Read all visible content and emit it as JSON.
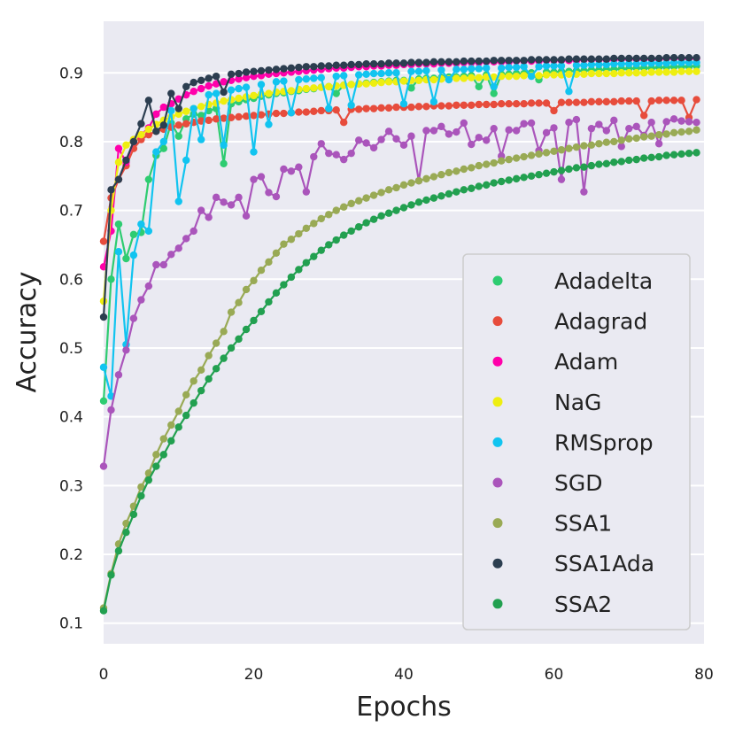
{
  "chart_data": {
    "type": "line",
    "title": "",
    "xlabel": "Epochs",
    "ylabel": "Accuracy",
    "xlim": [
      0,
      80
    ],
    "ylim": [
      0.07,
      0.975
    ],
    "xticks": [
      0,
      20,
      40,
      60,
      80
    ],
    "yticks": [
      0.1,
      0.2,
      0.3,
      0.4,
      0.5,
      0.6,
      0.7,
      0.8,
      0.9
    ],
    "xtick_labels": [
      "0",
      "20",
      "40",
      "60",
      "80"
    ],
    "ytick_labels": [
      "0.1",
      "0.2",
      "0.3",
      "0.4",
      "0.5",
      "0.6",
      "0.7",
      "0.8",
      "0.9"
    ],
    "grid": true,
    "legend_position": "center-right",
    "x": [
      0,
      1,
      2,
      3,
      4,
      5,
      6,
      7,
      8,
      9,
      10,
      11,
      12,
      13,
      14,
      15,
      16,
      17,
      18,
      19,
      20,
      21,
      22,
      23,
      24,
      25,
      26,
      27,
      28,
      29,
      30,
      31,
      32,
      33,
      34,
      35,
      36,
      37,
      38,
      39,
      40,
      41,
      42,
      43,
      44,
      45,
      46,
      47,
      48,
      49,
      50,
      51,
      52,
      53,
      54,
      55,
      56,
      57,
      58,
      59,
      60,
      61,
      62,
      63,
      64,
      65,
      66,
      67,
      68,
      69,
      70,
      71,
      72,
      73,
      74,
      75,
      76,
      77,
      78,
      79
    ],
    "series": [
      {
        "name": "Adadelta",
        "color": "#2ecc71",
        "values": [
          0.423,
          0.6,
          0.68,
          0.63,
          0.665,
          0.668,
          0.745,
          0.78,
          0.79,
          0.827,
          0.808,
          0.833,
          0.84,
          0.838,
          0.845,
          0.848,
          0.768,
          0.855,
          0.858,
          0.861,
          0.863,
          0.866,
          0.868,
          0.87,
          0.871,
          0.873,
          0.874,
          0.876,
          0.877,
          0.879,
          0.88,
          0.87,
          0.882,
          0.883,
          0.884,
          0.885,
          0.886,
          0.887,
          0.888,
          0.889,
          0.889,
          0.878,
          0.891,
          0.892,
          0.892,
          0.893,
          0.894,
          0.894,
          0.895,
          0.896,
          0.88,
          0.897,
          0.87,
          0.898,
          0.898,
          0.899,
          0.899,
          0.9,
          0.89,
          0.901,
          0.901,
          0.902,
          0.902,
          0.903,
          0.903,
          0.904,
          0.904,
          0.905,
          0.905,
          0.906,
          0.906,
          0.907,
          0.907,
          0.907,
          0.908,
          0.908,
          0.909,
          0.909,
          0.909,
          0.91
        ]
      },
      {
        "name": "Adagrad",
        "color": "#e74c3c",
        "values": [
          0.655,
          0.718,
          0.745,
          0.765,
          0.79,
          0.803,
          0.81,
          0.815,
          0.818,
          0.821,
          0.824,
          0.826,
          0.828,
          0.83,
          0.831,
          0.833,
          0.834,
          0.835,
          0.836,
          0.837,
          0.838,
          0.839,
          0.84,
          0.841,
          0.841,
          0.842,
          0.843,
          0.843,
          0.844,
          0.845,
          0.845,
          0.846,
          0.828,
          0.847,
          0.847,
          0.848,
          0.848,
          0.849,
          0.849,
          0.85,
          0.85,
          0.85,
          0.851,
          0.851,
          0.852,
          0.852,
          0.852,
          0.853,
          0.853,
          0.853,
          0.854,
          0.854,
          0.854,
          0.855,
          0.855,
          0.855,
          0.855,
          0.856,
          0.856,
          0.856,
          0.845,
          0.857,
          0.857,
          0.857,
          0.857,
          0.858,
          0.858,
          0.858,
          0.858,
          0.859,
          0.859,
          0.859,
          0.838,
          0.859,
          0.86,
          0.86,
          0.86,
          0.86,
          0.835,
          0.861
        ]
      },
      {
        "name": "Adam",
        "color": "#ff00aa",
        "values": [
          0.618,
          0.67,
          0.79,
          0.77,
          0.8,
          0.81,
          0.82,
          0.84,
          0.85,
          0.855,
          0.862,
          0.868,
          0.873,
          0.877,
          0.881,
          0.884,
          0.887,
          0.889,
          0.891,
          0.893,
          0.895,
          0.896,
          0.898,
          0.899,
          0.9,
          0.901,
          0.902,
          0.903,
          0.904,
          0.905,
          0.906,
          0.907,
          0.907,
          0.908,
          0.909,
          0.909,
          0.91,
          0.91,
          0.911,
          0.911,
          0.912,
          0.912,
          0.913,
          0.913,
          0.913,
          0.914,
          0.914,
          0.914,
          0.915,
          0.915,
          0.915,
          0.916,
          0.916,
          0.916,
          0.916,
          0.917,
          0.917,
          0.917,
          0.917,
          0.918,
          0.918,
          0.918,
          0.918,
          0.918,
          0.919,
          0.919,
          0.919,
          0.919,
          0.919,
          0.92,
          0.92,
          0.92,
          0.92,
          0.92,
          0.92,
          0.921,
          0.921,
          0.921,
          0.921,
          0.921
        ]
      },
      {
        "name": "NaG",
        "color": "#eeee11",
        "values": [
          0.568,
          0.7,
          0.77,
          0.795,
          0.803,
          0.81,
          0.818,
          0.825,
          0.831,
          0.836,
          0.84,
          0.844,
          0.848,
          0.851,
          0.854,
          0.856,
          0.859,
          0.861,
          0.863,
          0.865,
          0.867,
          0.869,
          0.87,
          0.872,
          0.873,
          0.874,
          0.876,
          0.877,
          0.878,
          0.879,
          0.88,
          0.881,
          0.882,
          0.883,
          0.884,
          0.884,
          0.885,
          0.886,
          0.887,
          0.887,
          0.888,
          0.889,
          0.889,
          0.89,
          0.89,
          0.891,
          0.891,
          0.892,
          0.892,
          0.893,
          0.893,
          0.894,
          0.894,
          0.895,
          0.895,
          0.895,
          0.896,
          0.896,
          0.896,
          0.897,
          0.897,
          0.897,
          0.898,
          0.898,
          0.898,
          0.899,
          0.899,
          0.899,
          0.899,
          0.9,
          0.9,
          0.9,
          0.9,
          0.901,
          0.901,
          0.901,
          0.901,
          0.902,
          0.902,
          0.902
        ]
      },
      {
        "name": "RMSprop",
        "color": "#11c4f0",
        "values": [
          0.472,
          0.43,
          0.64,
          0.505,
          0.635,
          0.68,
          0.67,
          0.785,
          0.8,
          0.845,
          0.713,
          0.773,
          0.848,
          0.803,
          0.868,
          0.87,
          0.795,
          0.875,
          0.877,
          0.879,
          0.785,
          0.883,
          0.825,
          0.887,
          0.888,
          0.842,
          0.89,
          0.891,
          0.892,
          0.893,
          0.848,
          0.895,
          0.896,
          0.853,
          0.897,
          0.898,
          0.899,
          0.899,
          0.9,
          0.9,
          0.855,
          0.902,
          0.902,
          0.903,
          0.858,
          0.904,
          0.89,
          0.905,
          0.905,
          0.906,
          0.906,
          0.907,
          0.88,
          0.907,
          0.908,
          0.908,
          0.909,
          0.895,
          0.909,
          0.91,
          0.91,
          0.91,
          0.873,
          0.911,
          0.911,
          0.912,
          0.912,
          0.912,
          0.913,
          0.913,
          0.913,
          0.913,
          0.914,
          0.914,
          0.914,
          0.914,
          0.915,
          0.915,
          0.915,
          0.915
        ]
      },
      {
        "name": "SGD",
        "color": "#aa55bb",
        "values": [
          0.328,
          0.41,
          0.461,
          0.497,
          0.543,
          0.57,
          0.59,
          0.621,
          0.621,
          0.636,
          0.645,
          0.659,
          0.67,
          0.7,
          0.69,
          0.719,
          0.712,
          0.708,
          0.719,
          0.692,
          0.745,
          0.749,
          0.726,
          0.72,
          0.76,
          0.757,
          0.763,
          0.727,
          0.778,
          0.797,
          0.783,
          0.781,
          0.774,
          0.783,
          0.802,
          0.798,
          0.791,
          0.803,
          0.815,
          0.804,
          0.795,
          0.808,
          0.743,
          0.816,
          0.816,
          0.822,
          0.811,
          0.814,
          0.827,
          0.796,
          0.806,
          0.802,
          0.819,
          0.779,
          0.817,
          0.816,
          0.826,
          0.827,
          0.787,
          0.813,
          0.82,
          0.745,
          0.828,
          0.832,
          0.727,
          0.819,
          0.825,
          0.816,
          0.831,
          0.793,
          0.819,
          0.822,
          0.809,
          0.828,
          0.797,
          0.829,
          0.833,
          0.83,
          0.829,
          0.828
        ]
      },
      {
        "name": "SSA1",
        "color": "#99aa55",
        "values": [
          0.122,
          0.172,
          0.215,
          0.245,
          0.27,
          0.298,
          0.318,
          0.345,
          0.368,
          0.388,
          0.408,
          0.432,
          0.452,
          0.468,
          0.489,
          0.507,
          0.524,
          0.552,
          0.566,
          0.585,
          0.598,
          0.613,
          0.625,
          0.638,
          0.651,
          0.658,
          0.666,
          0.674,
          0.681,
          0.688,
          0.694,
          0.7,
          0.705,
          0.71,
          0.714,
          0.718,
          0.722,
          0.726,
          0.73,
          0.733,
          0.737,
          0.74,
          0.743,
          0.746,
          0.749,
          0.752,
          0.755,
          0.757,
          0.76,
          0.762,
          0.765,
          0.767,
          0.769,
          0.772,
          0.774,
          0.776,
          0.778,
          0.78,
          0.782,
          0.784,
          0.786,
          0.788,
          0.79,
          0.792,
          0.794,
          0.795,
          0.797,
          0.799,
          0.8,
          0.802,
          0.804,
          0.805,
          0.807,
          0.808,
          0.81,
          0.811,
          0.813,
          0.814,
          0.815,
          0.817
        ]
      },
      {
        "name": "SSA1Ada",
        "color": "#2c3e50",
        "values": [
          0.545,
          0.73,
          0.745,
          0.773,
          0.8,
          0.826,
          0.86,
          0.815,
          0.824,
          0.87,
          0.848,
          0.88,
          0.886,
          0.889,
          0.892,
          0.895,
          0.872,
          0.898,
          0.899,
          0.901,
          0.902,
          0.903,
          0.904,
          0.905,
          0.906,
          0.907,
          0.908,
          0.909,
          0.909,
          0.91,
          0.91,
          0.911,
          0.911,
          0.912,
          0.912,
          0.913,
          0.913,
          0.913,
          0.914,
          0.914,
          0.914,
          0.915,
          0.915,
          0.915,
          0.916,
          0.916,
          0.916,
          0.916,
          0.917,
          0.917,
          0.917,
          0.917,
          0.918,
          0.918,
          0.918,
          0.918,
          0.918,
          0.919,
          0.919,
          0.919,
          0.919,
          0.919,
          0.92,
          0.92,
          0.92,
          0.92,
          0.92,
          0.92,
          0.921,
          0.921,
          0.921,
          0.921,
          0.921,
          0.921,
          0.921,
          0.922,
          0.922,
          0.922,
          0.922,
          0.922
        ]
      },
      {
        "name": "SSA2",
        "color": "#22a050",
        "values": [
          0.118,
          0.17,
          0.205,
          0.232,
          0.258,
          0.285,
          0.308,
          0.328,
          0.345,
          0.365,
          0.385,
          0.402,
          0.42,
          0.438,
          0.455,
          0.47,
          0.485,
          0.5,
          0.513,
          0.527,
          0.54,
          0.553,
          0.567,
          0.58,
          0.592,
          0.603,
          0.614,
          0.624,
          0.633,
          0.642,
          0.65,
          0.657,
          0.664,
          0.67,
          0.676,
          0.682,
          0.687,
          0.692,
          0.696,
          0.7,
          0.704,
          0.708,
          0.712,
          0.715,
          0.718,
          0.721,
          0.724,
          0.727,
          0.73,
          0.732,
          0.735,
          0.737,
          0.74,
          0.742,
          0.744,
          0.746,
          0.748,
          0.75,
          0.752,
          0.754,
          0.756,
          0.758,
          0.76,
          0.762,
          0.763,
          0.765,
          0.767,
          0.768,
          0.77,
          0.771,
          0.773,
          0.774,
          0.776,
          0.777,
          0.778,
          0.78,
          0.781,
          0.782,
          0.783,
          0.784
        ]
      }
    ]
  }
}
